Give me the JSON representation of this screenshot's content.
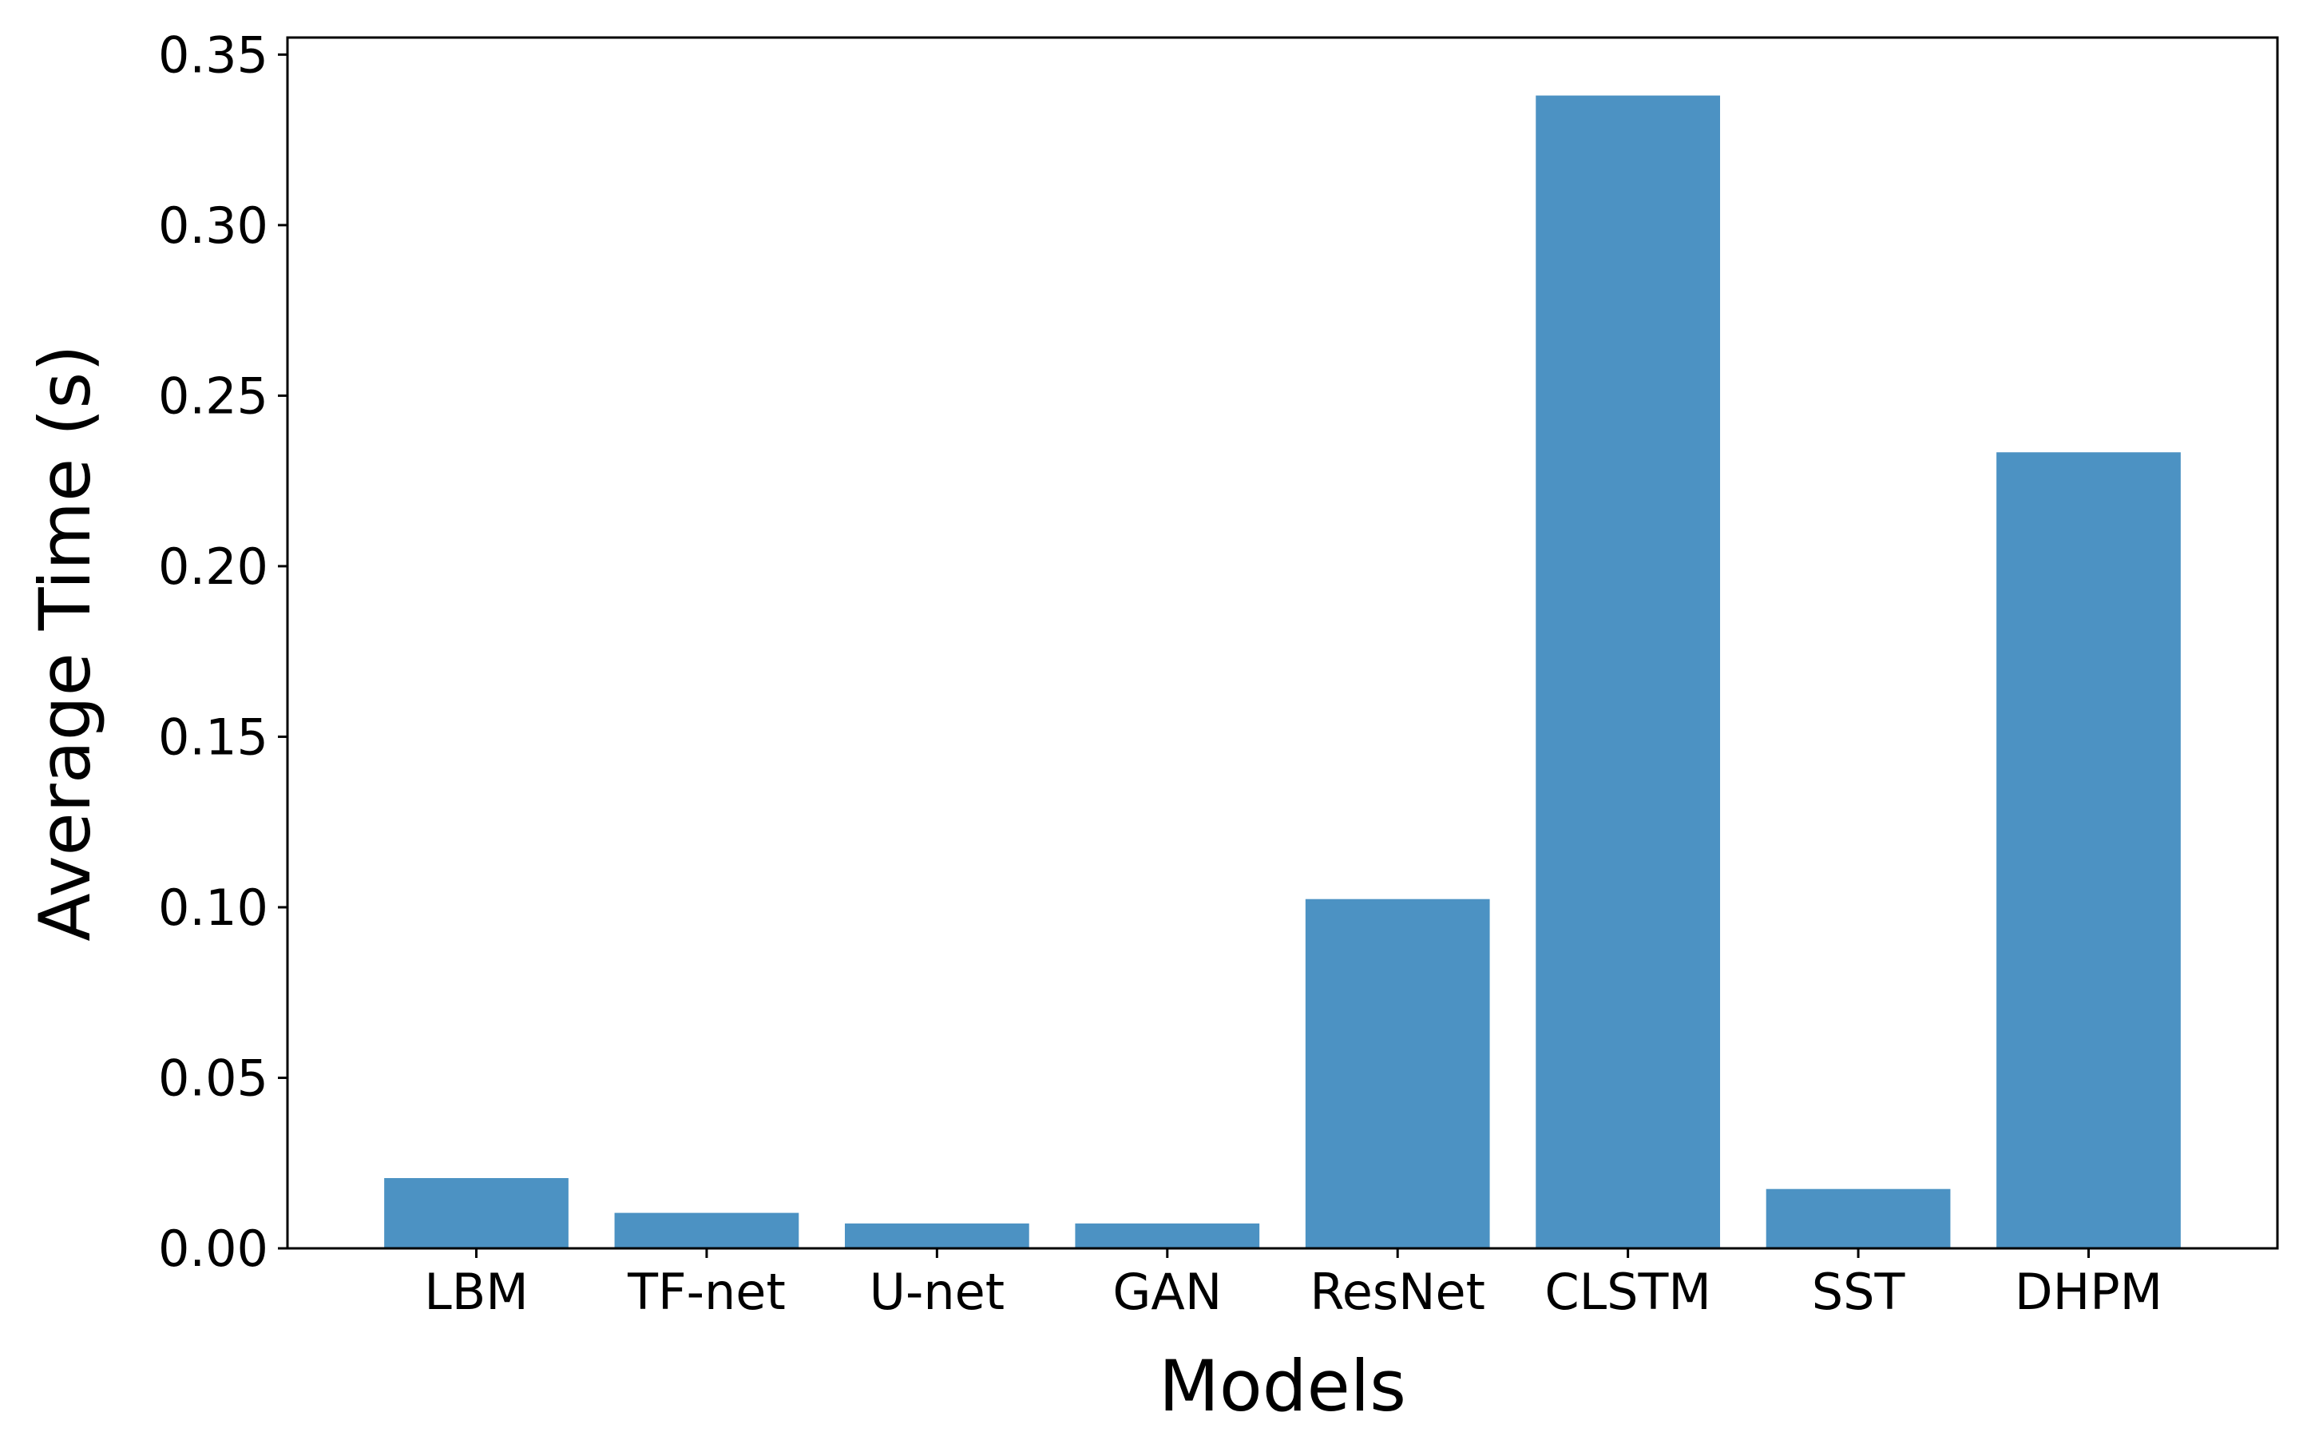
{
  "chart_data": {
    "type": "bar",
    "title": "",
    "xlabel": "Models",
    "ylabel": "Average Time (s)",
    "categories": [
      "LBM",
      "TF-net",
      "U-net",
      "GAN",
      "ResNet",
      "CLSTM",
      "SST",
      "DHPM"
    ],
    "values": [
      0.0206,
      0.0104,
      0.0073,
      0.0073,
      0.1024,
      0.338,
      0.0174,
      0.2334
    ],
    "ylim": [
      0,
      0.355
    ],
    "yticks": [
      0.0,
      0.05,
      0.1,
      0.15,
      0.2,
      0.25,
      0.3,
      0.35
    ],
    "ytick_labels": [
      "0.00",
      "0.05",
      "0.10",
      "0.15",
      "0.20",
      "0.25",
      "0.30",
      "0.35"
    ],
    "bar_color": "#4c92c3",
    "grid": false,
    "legend": "none"
  }
}
